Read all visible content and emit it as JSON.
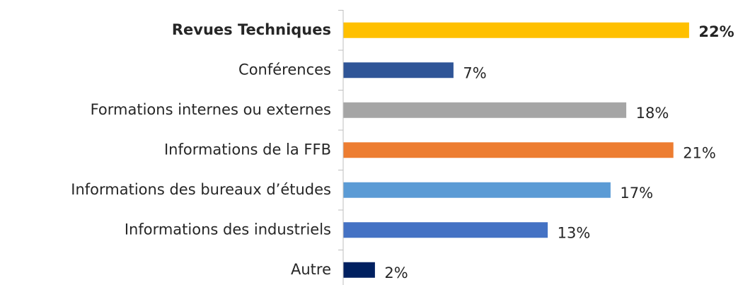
{
  "chart_data": {
    "type": "bar",
    "orientation": "horizontal",
    "categories": [
      "Revues Techniques",
      "Conférences",
      "Formations internes ou externes",
      "Informations de la FFB",
      "Informations des bureaux d’études",
      "Informations des industriels",
      "Autre"
    ],
    "values": [
      22,
      7,
      18,
      21,
      17,
      13,
      2
    ],
    "value_labels": [
      "22%",
      "7%",
      "18%",
      "21%",
      "17%",
      "13%",
      "2%"
    ],
    "colors": [
      "#ffc000",
      "#2f5597",
      "#a5a5a5",
      "#ed7d31",
      "#5b9bd5",
      "#4472c4",
      "#002060"
    ],
    "highlight_index": 0
  }
}
